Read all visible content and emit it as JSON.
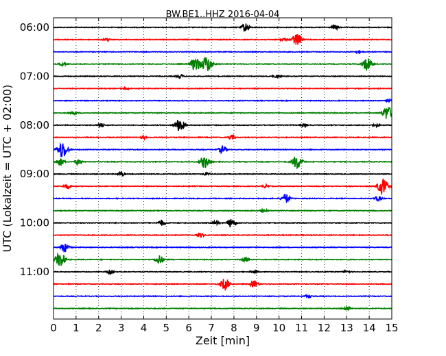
{
  "chart_data": {
    "type": "line",
    "title": "BW.BE1..HHZ 2016-04-04",
    "xlabel": "Zeit  [min]",
    "ylabel": "UTC (Lokalzeit = UTC + 02:00)",
    "xlim": [
      0,
      15
    ],
    "x_ticks": [
      "0",
      "1",
      "2",
      "3",
      "4",
      "5",
      "6",
      "7",
      "8",
      "9",
      "10",
      "11",
      "12",
      "13",
      "14",
      "15"
    ],
    "y_ticks": [
      {
        "label": "06:00",
        "trace": 0
      },
      {
        "label": "07:00",
        "trace": 4
      },
      {
        "label": "08:00",
        "trace": 8
      },
      {
        "label": "09:00",
        "trace": 12
      },
      {
        "label": "10:00",
        "trace": 16
      },
      {
        "label": "11:00",
        "trace": 20
      }
    ],
    "trace_interval_minutes": 15,
    "colors": [
      "#000000",
      "#ff0000",
      "#0000ff",
      "#008000"
    ],
    "grid": "vertical dotted",
    "traces": [
      {
        "start": "06:00",
        "color": "#000000",
        "events": [
          [
            8.5,
            0.9
          ],
          [
            12.5,
            0.5
          ]
        ]
      },
      {
        "start": "06:15",
        "color": "#ff0000",
        "events": [
          [
            2.3,
            0.3
          ],
          [
            10.8,
            1.4
          ],
          [
            10.2,
            0.3
          ]
        ]
      },
      {
        "start": "06:30",
        "color": "#0000ff",
        "events": [
          [
            13.5,
            0.3
          ]
        ]
      },
      {
        "start": "06:45",
        "color": "#008000",
        "events": [
          [
            6.3,
            1.5
          ],
          [
            6.8,
            1.8
          ],
          [
            13.9,
            1.4
          ],
          [
            0.4,
            0.3
          ]
        ]
      },
      {
        "start": "07:00",
        "color": "#000000",
        "events": [
          [
            5.6,
            0.4
          ],
          [
            9.9,
            0.3
          ]
        ]
      },
      {
        "start": "07:15",
        "color": "#ff0000",
        "events": [
          [
            3.2,
            0.3
          ]
        ]
      },
      {
        "start": "07:30",
        "color": "#0000ff",
        "events": [
          [
            14.9,
            0.3
          ]
        ]
      },
      {
        "start": "07:45",
        "color": "#008000",
        "events": [
          [
            14.8,
            1.5
          ],
          [
            0.9,
            0.4
          ]
        ]
      },
      {
        "start": "08:00",
        "color": "#000000",
        "events": [
          [
            5.6,
            1.4
          ],
          [
            2.1,
            0.4
          ],
          [
            11.1,
            0.3
          ],
          [
            14.3,
            0.3
          ]
        ]
      },
      {
        "start": "08:15",
        "color": "#ff0000",
        "events": [
          [
            7.9,
            0.5
          ],
          [
            4.0,
            0.3
          ]
        ]
      },
      {
        "start": "08:30",
        "color": "#0000ff",
        "events": [
          [
            0.4,
            1.8
          ],
          [
            7.5,
            0.8
          ]
        ]
      },
      {
        "start": "08:45",
        "color": "#008000",
        "events": [
          [
            6.7,
            1.3
          ],
          [
            10.8,
            1.5
          ],
          [
            0.3,
            0.8
          ],
          [
            1.1,
            0.5
          ]
        ]
      },
      {
        "start": "09:00",
        "color": "#000000",
        "events": [
          [
            3.0,
            0.4
          ],
          [
            6.8,
            0.3
          ]
        ]
      },
      {
        "start": "09:15",
        "color": "#ff0000",
        "events": [
          [
            14.6,
            1.8
          ],
          [
            0.6,
            0.5
          ],
          [
            9.4,
            0.3
          ]
        ]
      },
      {
        "start": "09:30",
        "color": "#0000ff",
        "events": [
          [
            10.3,
            1.0
          ],
          [
            14.4,
            0.5
          ]
        ]
      },
      {
        "start": "09:45",
        "color": "#008000",
        "events": [
          [
            9.3,
            0.4
          ]
        ]
      },
      {
        "start": "10:00",
        "color": "#000000",
        "events": [
          [
            7.9,
            1.0
          ],
          [
            4.8,
            0.6
          ],
          [
            7.2,
            0.4
          ]
        ]
      },
      {
        "start": "10:15",
        "color": "#ff0000",
        "events": [
          [
            6.5,
            0.5
          ]
        ]
      },
      {
        "start": "10:30",
        "color": "#0000ff",
        "events": [
          [
            0.5,
            1.0
          ]
        ]
      },
      {
        "start": "10:45",
        "color": "#008000",
        "events": [
          [
            0.3,
            1.6
          ],
          [
            4.7,
            0.9
          ],
          [
            8.5,
            0.5
          ]
        ]
      },
      {
        "start": "11:00",
        "color": "#000000",
        "events": [
          [
            2.5,
            0.4
          ],
          [
            8.9,
            0.3
          ],
          [
            13.0,
            0.3
          ]
        ]
      },
      {
        "start": "11:15",
        "color": "#ff0000",
        "events": [
          [
            7.6,
            1.3
          ],
          [
            8.9,
            0.7
          ]
        ]
      },
      {
        "start": "11:30",
        "color": "#0000ff",
        "events": [
          [
            11.3,
            0.3
          ]
        ]
      },
      {
        "start": "11:45",
        "color": "#008000",
        "events": [
          [
            13.0,
            0.4
          ]
        ]
      }
    ]
  }
}
